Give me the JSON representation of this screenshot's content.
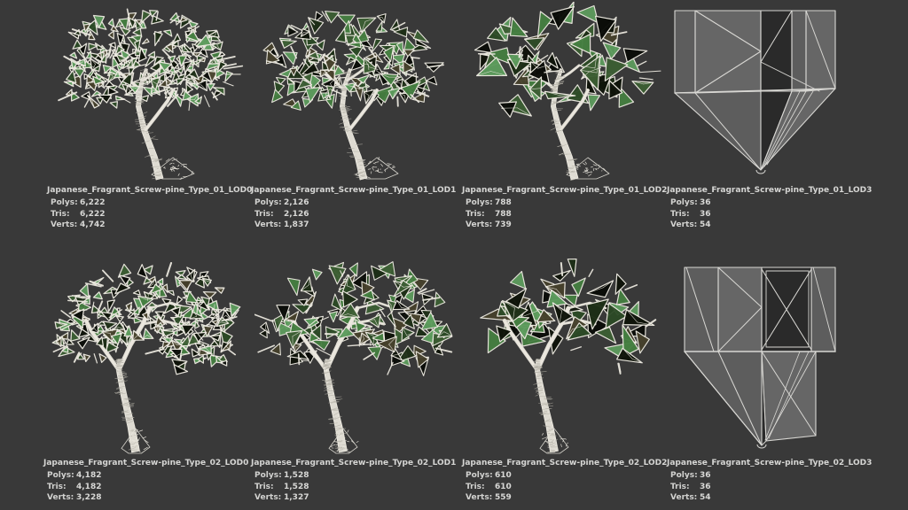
{
  "page": {
    "background_color": "#393939",
    "text_color": "#d6d6d4",
    "wireframe_color": "#edeae1",
    "trunk_color": "#dedbd2"
  },
  "stats_labels": {
    "polys": "Polys:",
    "tris": "Tris:",
    "verts": "Verts:"
  },
  "leaf_palette": [
    "#0e1309",
    "#1d2e16",
    "#2c4a26",
    "#457f41",
    "#5d9c5d",
    "#46412c",
    "#0a0c08",
    "#3c5e33"
  ],
  "models": [
    {
      "name": "Japanese_Fragrant_Screw-pine_Type_01_LOD0",
      "polys": "6,222",
      "tris": "6,222",
      "verts": "4,742"
    },
    {
      "name": "Japanese_Fragrant_Screw-pine_Type_01_LOD1",
      "polys": "2,126",
      "tris": "2,126",
      "verts": "1,837"
    },
    {
      "name": "Japanese_Fragrant_Screw-pine_Type_01_LOD2",
      "polys": "788",
      "tris": "788",
      "verts": "739"
    },
    {
      "name": "Japanese_Fragrant_Screw-pine_Type_01_LOD3",
      "polys": "36",
      "tris": "36",
      "verts": "54"
    },
    {
      "name": "Japanese_Fragrant_Screw-pine_Type_02_LOD0",
      "polys": "4,182",
      "tris": "4,182",
      "verts": "3,228"
    },
    {
      "name": "Japanese_Fragrant_Screw-pine_Type_02_LOD1",
      "polys": "1,528",
      "tris": "1,528",
      "verts": "1,327"
    },
    {
      "name": "Japanese_Fragrant_Screw-pine_Type_02_LOD2",
      "polys": "610",
      "tris": "610",
      "verts": "559"
    },
    {
      "name": "Japanese_Fragrant_Screw-pine_Type_02_LOD3",
      "polys": "36",
      "tris": "36",
      "verts": "54"
    }
  ]
}
